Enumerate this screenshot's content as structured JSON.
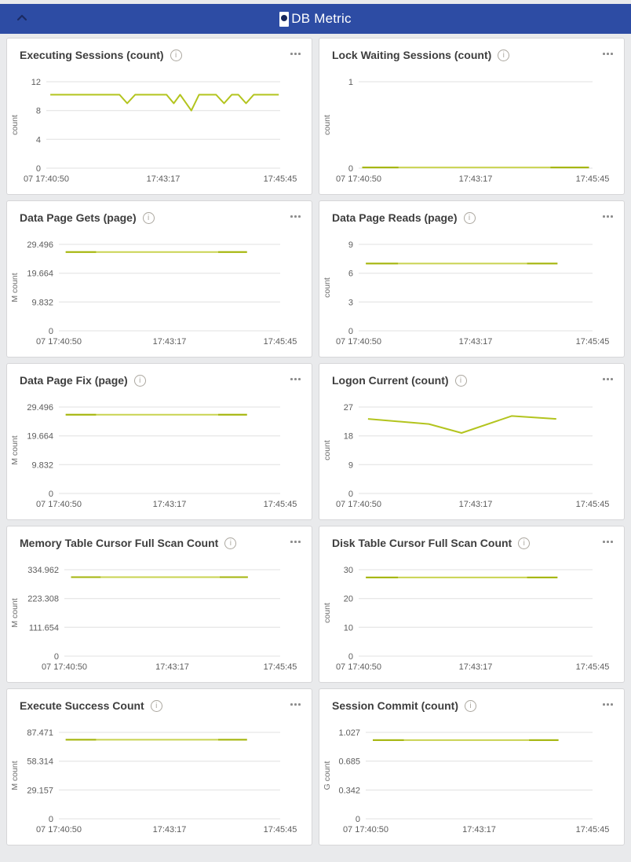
{
  "header": {
    "title": "DB Metric",
    "collapse_icon": "chevron-up-icon",
    "bg_color": "#2d4ca4"
  },
  "colors": {
    "line": "#b3c41e",
    "line_light": "#c9d350",
    "line_dark": "#a4b50c",
    "grid": "#e0e0e0",
    "panel_border": "#d6d6d8",
    "page_bg": "#e9eaec"
  },
  "panel_controls": {
    "info_icon": "i",
    "more_menu": "ellipsis"
  },
  "chart_data": [
    {
      "type": "line",
      "title": "Executing Sessions (count)",
      "unit": "count",
      "ylabel": "count",
      "ylim": [
        0,
        12
      ],
      "y_max": 12,
      "y_ticks": [
        "0",
        "4",
        "8",
        "12"
      ],
      "x_labels": [
        "07 17:40:50",
        "17:43:17",
        "17:45:45"
      ],
      "legend": "off",
      "grid": "on",
      "color": "#b3c41e",
      "points": [
        [
          0.017,
          10.2
        ],
        [
          0.313,
          10.2
        ],
        [
          0.346,
          9
        ],
        [
          0.38,
          10.2
        ],
        [
          0.514,
          10.2
        ],
        [
          0.545,
          9
        ],
        [
          0.572,
          10.2
        ],
        [
          0.62,
          8
        ],
        [
          0.653,
          10.2
        ],
        [
          0.726,
          10.2
        ],
        [
          0.76,
          9
        ],
        [
          0.793,
          10.2
        ],
        [
          0.821,
          10.2
        ],
        [
          0.854,
          9
        ],
        [
          0.887,
          10.2
        ],
        [
          0.994,
          10.2
        ]
      ]
    },
    {
      "type": "line",
      "title": "Lock Waiting Sessions (count)",
      "unit": "count",
      "ylabel": "count",
      "ylim": [
        0,
        1
      ],
      "y_max": 1,
      "y_ticks": [
        "0",
        "1"
      ],
      "x_labels": [
        "07 17:40:50",
        "17:43:17",
        "17:45:45"
      ],
      "legend": "off",
      "grid": "on",
      "color": "#c9d350",
      "points": [
        [
          0.015,
          0.008
        ],
        [
          0.985,
          0.008
        ]
      ],
      "overlays": [
        {
          "from": 0.015,
          "to": 0.17,
          "value": 0.008,
          "color": "#a4b50c"
        },
        {
          "from": 0.82,
          "to": 0.985,
          "value": 0.008,
          "color": "#a4b50c"
        }
      ]
    },
    {
      "type": "line",
      "title": "Data Page Gets (page)",
      "unit": "M count",
      "ylabel": "M count",
      "ylim": [
        0,
        29.496
      ],
      "y_max": 29.496,
      "y_ticks": [
        "0",
        "9.832",
        "19.664",
        "29.496"
      ],
      "x_labels": [
        "07 17:40:50",
        "17:43:17",
        "17:45:45"
      ],
      "legend": "off",
      "grid": "on",
      "color": "#c9d350",
      "points": [
        [
          0.031,
          26.9
        ],
        [
          0.85,
          26.9
        ]
      ],
      "overlays": [
        {
          "from": 0.031,
          "to": 0.168,
          "value": 26.9,
          "color": "#a4b50c"
        },
        {
          "from": 0.72,
          "to": 0.85,
          "value": 26.9,
          "color": "#a4b50c"
        }
      ]
    },
    {
      "type": "line",
      "title": "Data Page Reads (page)",
      "unit": "count",
      "ylabel": "count",
      "ylim": [
        0,
        9
      ],
      "y_max": 9,
      "y_ticks": [
        "0",
        "3",
        "6",
        "9"
      ],
      "x_labels": [
        "07 17:40:50",
        "17:43:17",
        "17:45:45"
      ],
      "legend": "off",
      "grid": "on",
      "color": "#c9d350",
      "points": [
        [
          0.031,
          7
        ],
        [
          0.85,
          7
        ]
      ],
      "overlays": [
        {
          "from": 0.031,
          "to": 0.168,
          "value": 7,
          "color": "#a4b50c"
        },
        {
          "from": 0.72,
          "to": 0.85,
          "value": 7,
          "color": "#a4b50c"
        }
      ]
    },
    {
      "type": "line",
      "title": "Data Page Fix (page)",
      "unit": "M count",
      "ylabel": "M count",
      "ylim": [
        0,
        29.496
      ],
      "y_max": 29.496,
      "y_ticks": [
        "0",
        "9.832",
        "19.664",
        "29.496"
      ],
      "x_labels": [
        "07 17:40:50",
        "17:43:17",
        "17:45:45"
      ],
      "legend": "off",
      "grid": "on",
      "color": "#c9d350",
      "points": [
        [
          0.031,
          26.9
        ],
        [
          0.85,
          26.9
        ]
      ],
      "overlays": [
        {
          "from": 0.031,
          "to": 0.168,
          "value": 26.9,
          "color": "#a4b50c"
        },
        {
          "from": 0.72,
          "to": 0.85,
          "value": 26.9,
          "color": "#a4b50c"
        }
      ]
    },
    {
      "type": "line",
      "title": "Logon Current (count)",
      "unit": "count",
      "ylabel": "count",
      "ylim": [
        0,
        27
      ],
      "y_max": 27,
      "y_ticks": [
        "0",
        "9",
        "18",
        "27"
      ],
      "x_labels": [
        "07 17:40:50",
        "17:43:17",
        "17:45:45"
      ],
      "legend": "off",
      "grid": "on",
      "color": "#b3c41e",
      "points": [
        [
          0.04,
          23.3
        ],
        [
          0.3,
          21.7
        ],
        [
          0.44,
          18.9
        ],
        [
          0.654,
          24.2
        ],
        [
          0.845,
          23.3
        ]
      ]
    },
    {
      "type": "line",
      "title": "Memory Table Cursor Full Scan Count",
      "unit": "M count",
      "ylabel": "M count",
      "ylim": [
        0,
        334.962
      ],
      "y_max": 334.962,
      "y_ticks": [
        "0",
        "111.654",
        "223.308",
        "334.962"
      ],
      "x_labels": [
        "07 17:40:50",
        "17:43:17",
        "17:45:45"
      ],
      "legend": "off",
      "grid": "on",
      "color": "#c9d350",
      "points": [
        [
          0.031,
          306
        ],
        [
          0.85,
          306
        ]
      ],
      "overlays": [
        {
          "from": 0.031,
          "to": 0.168,
          "value": 306,
          "color": "#a4b50c"
        },
        {
          "from": 0.72,
          "to": 0.85,
          "value": 306,
          "color": "#a4b50c"
        }
      ]
    },
    {
      "type": "line",
      "title": "Disk Table Cursor Full Scan Count",
      "unit": "count",
      "ylabel": "count",
      "ylim": [
        0,
        30
      ],
      "y_max": 30,
      "y_ticks": [
        "0",
        "10",
        "20",
        "30"
      ],
      "x_labels": [
        "07 17:40:50",
        "17:43:17",
        "17:45:45"
      ],
      "legend": "off",
      "grid": "on",
      "color": "#c9d350",
      "points": [
        [
          0.031,
          27.3
        ],
        [
          0.85,
          27.3
        ]
      ],
      "overlays": [
        {
          "from": 0.031,
          "to": 0.168,
          "value": 27.3,
          "color": "#a4b50c"
        },
        {
          "from": 0.72,
          "to": 0.85,
          "value": 27.3,
          "color": "#a4b50c"
        }
      ]
    },
    {
      "type": "line",
      "title": "Execute Success Count",
      "unit": "M count",
      "ylabel": "M count",
      "ylim": [
        0,
        87.471
      ],
      "y_max": 87.471,
      "y_ticks": [
        "0",
        "29.157",
        "58.314",
        "87.471"
      ],
      "x_labels": [
        "07 17:40:50",
        "17:43:17",
        "17:45:45"
      ],
      "legend": "off",
      "grid": "on",
      "color": "#c9d350",
      "points": [
        [
          0.031,
          80
        ],
        [
          0.85,
          80
        ]
      ],
      "overlays": [
        {
          "from": 0.031,
          "to": 0.168,
          "value": 80,
          "color": "#a4b50c"
        },
        {
          "from": 0.72,
          "to": 0.85,
          "value": 80,
          "color": "#a4b50c"
        }
      ]
    },
    {
      "type": "line",
      "title": "Session Commit (count)",
      "unit": "G count",
      "ylabel": "G count",
      "ylim": [
        0,
        1.027
      ],
      "y_max": 1.027,
      "y_ticks": [
        "0",
        "0.342",
        "0.685",
        "1.027"
      ],
      "x_labels": [
        "07 17:40:50",
        "17:43:17",
        "17:45:45"
      ],
      "legend": "off",
      "grid": "on",
      "color": "#c9d350",
      "points": [
        [
          0.031,
          0.935
        ],
        [
          0.85,
          0.935
        ]
      ],
      "overlays": [
        {
          "from": 0.031,
          "to": 0.168,
          "value": 0.935,
          "color": "#a4b50c"
        },
        {
          "from": 0.72,
          "to": 0.85,
          "value": 0.935,
          "color": "#a4b50c"
        }
      ]
    }
  ]
}
